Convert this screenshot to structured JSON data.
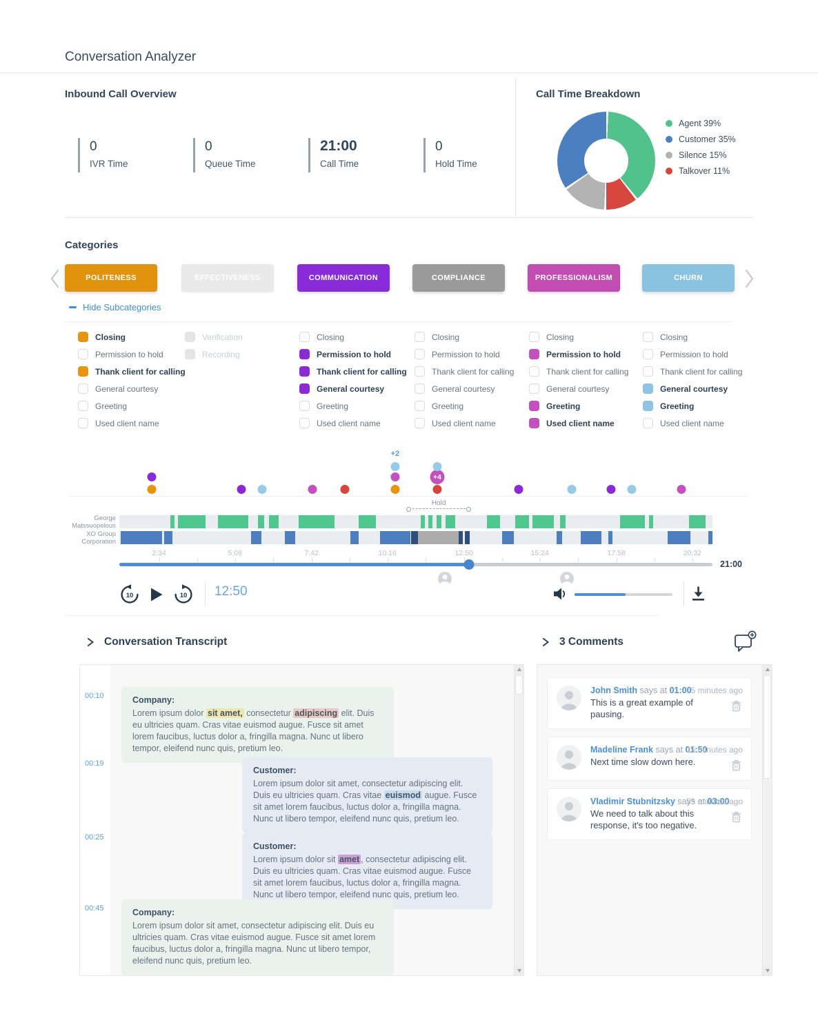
{
  "page": {
    "title": "Conversation Analyzer"
  },
  "overview": {
    "title": "Inbound Call Overview",
    "stats": [
      {
        "value": "0",
        "label": "IVR Time",
        "big": false
      },
      {
        "value": "0",
        "label": "Queue Time",
        "big": false
      },
      {
        "value": "21:00",
        "label": "Call Time",
        "big": true
      },
      {
        "value": "0",
        "label": "Hold Time",
        "big": false
      }
    ]
  },
  "chart_data": [
    {
      "type": "pie",
      "title": "Call Time Breakdown",
      "donut": true,
      "slices_clockwise_from_top": [
        {
          "label": "Agent",
          "value": 39,
          "color": "#52C28C"
        },
        {
          "label": "Talkover",
          "value": 11,
          "color": "#D6473D"
        },
        {
          "label": "Silence",
          "value": 15,
          "color": "#B3B3B3"
        },
        {
          "label": "Customer",
          "value": 35,
          "color": "#4C7FBF"
        }
      ],
      "legend": [
        {
          "label": "Agent",
          "pct": "39%",
          "color": "#52C28C"
        },
        {
          "label": "Customer",
          "pct": "35%",
          "color": "#4C7FBF"
        },
        {
          "label": "Silence",
          "pct": "15%",
          "color": "#B3B3B3"
        },
        {
          "label": "Talkover",
          "pct": "11%",
          "color": "#D6473D"
        }
      ]
    },
    {
      "type": "timeline",
      "speakers": [
        "George Matssuopolous",
        "XO Group Corporation"
      ],
      "palette": {
        "orange": "#E8940B",
        "purple": "#8B28D8",
        "magenta": "#C44FBE",
        "red": "#D6453C",
        "lightblue": "#99C9E8"
      },
      "track_colors": {
        "george": "#50C78E",
        "blue": "#4C7EC0",
        "gray": "#ACACAC",
        "dark": "#2F4E7D",
        "bg": "#E9EDF2"
      },
      "dots": [
        {
          "x": 5.5,
          "row": 0,
          "color": "orange"
        },
        {
          "x": 5.5,
          "row": 1,
          "color": "purple"
        },
        {
          "x": 20.6,
          "row": 0,
          "color": "purple"
        },
        {
          "x": 24.1,
          "row": 0,
          "color": "lightblue"
        },
        {
          "x": 32.6,
          "row": 0,
          "color": "magenta"
        },
        {
          "x": 38.0,
          "row": 0,
          "color": "red"
        },
        {
          "x": 46.5,
          "row": 0,
          "color": "orange"
        },
        {
          "x": 46.5,
          "row": 1,
          "color": "magenta"
        },
        {
          "x": 46.5,
          "row": 2,
          "color": "lightblue",
          "label": "+2"
        },
        {
          "x": 53.6,
          "row": 0,
          "color": "red"
        },
        {
          "x": 53.6,
          "row": 1,
          "color": "magenta",
          "badge": "+4"
        },
        {
          "x": 53.6,
          "row": 2,
          "color": "lightblue"
        },
        {
          "x": 67.3,
          "row": 0,
          "color": "purple"
        },
        {
          "x": 76.3,
          "row": 0,
          "color": "lightblue"
        },
        {
          "x": 82.9,
          "row": 0,
          "color": "purple"
        },
        {
          "x": 86.4,
          "row": 0,
          "color": "lightblue"
        },
        {
          "x": 94.8,
          "row": 0,
          "color": "magenta"
        }
      ],
      "hold": {
        "label": "Hold",
        "start": 48.8,
        "end": 58.9
      },
      "tracks": {
        "george": [
          {
            "s": 8.6,
            "w": 0.7
          },
          {
            "s": 9.9,
            "w": 4.6
          },
          {
            "s": 16.6,
            "w": 5.1
          },
          {
            "s": 23.4,
            "w": 1.0
          },
          {
            "s": 25.2,
            "w": 1.7
          },
          {
            "s": 30.2,
            "w": 6.1
          },
          {
            "s": 40.3,
            "w": 3.0
          },
          {
            "s": 50.8,
            "w": 0.7
          },
          {
            "s": 52.1,
            "w": 0.7
          },
          {
            "s": 53.5,
            "w": 0.8
          },
          {
            "s": 55.0,
            "w": 1.6
          },
          {
            "s": 62.0,
            "w": 2.2
          },
          {
            "s": 66.7,
            "w": 2.4
          },
          {
            "s": 69.7,
            "w": 3.5
          },
          {
            "s": 74.3,
            "w": 0.9
          },
          {
            "s": 84.4,
            "w": 4.2
          },
          {
            "s": 89.3,
            "w": 0.7
          },
          {
            "s": 96.1,
            "w": 2.7
          }
        ],
        "xo": [
          {
            "s": 0.2,
            "w": 7.0,
            "c": "blue"
          },
          {
            "s": 7.6,
            "w": 1.3,
            "c": "blue"
          },
          {
            "s": 22.2,
            "w": 1.7,
            "c": "blue"
          },
          {
            "s": 27.9,
            "w": 1.8,
            "c": "blue"
          },
          {
            "s": 39.0,
            "w": 1.3,
            "c": "blue"
          },
          {
            "s": 44.0,
            "w": 5.1,
            "c": "blue"
          },
          {
            "s": 49.2,
            "w": 1.2,
            "c": "dark"
          },
          {
            "s": 50.4,
            "w": 6.8,
            "c": "gray"
          },
          {
            "s": 57.2,
            "w": 0.7,
            "c": "dark"
          },
          {
            "s": 58.3,
            "w": 0.8,
            "c": "dark"
          },
          {
            "s": 64.5,
            "w": 2.0,
            "c": "blue"
          },
          {
            "s": 73.7,
            "w": 0.9,
            "c": "blue"
          },
          {
            "s": 77.8,
            "w": 3.5,
            "c": "blue"
          },
          {
            "s": 82.4,
            "w": 0.7,
            "c": "blue"
          },
          {
            "s": 92.4,
            "w": 3.9,
            "c": "blue"
          },
          {
            "s": 99.3,
            "w": 0.7,
            "c": "blue"
          }
        ]
      },
      "axis": [
        {
          "t": "2:34",
          "x": 6.7
        },
        {
          "t": "5:08",
          "x": 19.5
        },
        {
          "t": "7:42",
          "x": 32.4
        },
        {
          "t": "10:16",
          "x": 45.2
        },
        {
          "t": "12:50",
          "x": 58.1
        },
        {
          "t": "15:24",
          "x": 70.9
        },
        {
          "t": "17:58",
          "x": 83.8
        },
        {
          "t": "20:32",
          "x": 96.6
        }
      ],
      "end_label": "21:00",
      "progress_pct": 59.0,
      "comment_marker_pcts": [
        54.9,
        75.5
      ]
    }
  ],
  "categories": {
    "heading": "Categories",
    "hide_link": "Hide Subcategories",
    "buttons": [
      {
        "label": "POLITENESS",
        "color": "#E2930D",
        "state": "active"
      },
      {
        "label": "EFFECTIVENESS",
        "color": "#E9E9E9",
        "state": "disabled"
      },
      {
        "label": "COMMUNICATION",
        "color": "#8A2BD9",
        "state": "active"
      },
      {
        "label": "COMPLIANCE",
        "color": "#9A9A9A",
        "state": "active"
      },
      {
        "label": "PROFESSIONALISM",
        "color": "#C24CB2",
        "state": "active"
      },
      {
        "label": "CHURN",
        "color": "#89C3E1",
        "state": "active"
      }
    ],
    "columns": [
      {
        "category": "POLITENESS",
        "accent": "#E8960F",
        "items": [
          {
            "label": "Closing",
            "checked": true
          },
          {
            "label": "Permission to hold",
            "checked": false
          },
          {
            "label": "Thank client for calling",
            "checked": true
          },
          {
            "label": "General courtesy",
            "checked": false
          },
          {
            "label": "Greeting",
            "checked": false
          },
          {
            "label": "Used client name",
            "checked": false
          }
        ]
      },
      {
        "category": "EFFECTIVENESS",
        "accent": "#E4E4E4",
        "items": [
          {
            "label": "Verification",
            "checked": false,
            "disabled": true
          },
          {
            "label": "Recording",
            "checked": false,
            "disabled": true
          }
        ]
      },
      {
        "category": "COMMUNICATION",
        "accent": "#8B2BD3",
        "items": [
          {
            "label": "Closing",
            "checked": false
          },
          {
            "label": "Permission to hold",
            "checked": true
          },
          {
            "label": "Thank client for calling",
            "checked": true
          },
          {
            "label": "General courtesy",
            "checked": true
          },
          {
            "label": "Greeting",
            "checked": false
          },
          {
            "label": "Used client name",
            "checked": false
          }
        ]
      },
      {
        "category": "COMPLIANCE",
        "accent": "#9A9A9A",
        "items": [
          {
            "label": "Closing",
            "checked": false
          },
          {
            "label": "Permission to hold",
            "checked": false
          },
          {
            "label": "Thank client for calling",
            "checked": false
          },
          {
            "label": "General courtesy",
            "checked": false
          },
          {
            "label": "Greeting",
            "checked": false
          },
          {
            "label": "Used client name",
            "checked": false
          }
        ]
      },
      {
        "category": "PROFESSIONALISM",
        "accent": "#C44FBE",
        "items": [
          {
            "label": "Closing",
            "checked": false
          },
          {
            "label": "Permission to hold",
            "checked": true
          },
          {
            "label": "Thank client for calling",
            "checked": false
          },
          {
            "label": "General courtesy",
            "checked": false
          },
          {
            "label": "Greeting",
            "checked": true
          },
          {
            "label": "Used client name",
            "checked": true
          }
        ]
      },
      {
        "category": "CHURN",
        "accent": "#8FC3E4",
        "items": [
          {
            "label": "Closing",
            "checked": false
          },
          {
            "label": "Permission to hold",
            "checked": false
          },
          {
            "label": "Thank client for calling",
            "checked": false
          },
          {
            "label": "General courtesy",
            "checked": true
          },
          {
            "label": "Greeting",
            "checked": true
          },
          {
            "label": "Used client name",
            "checked": false
          }
        ]
      }
    ]
  },
  "player": {
    "current_time": "12:50",
    "volume_pct": 52
  },
  "transcript": {
    "heading": "Conversation Transcript",
    "highlight_colors": {
      "yellow": "#F0E4AF",
      "red": "#EBC8C4",
      "blue": "#C5DDF0",
      "purple": "#CDA0DA"
    },
    "messages": [
      {
        "time": "00:10",
        "speaker": "Company:",
        "side": "left",
        "parts": [
          {
            "t": "Lorem ipsum dolor "
          },
          {
            "t": "sit amet,",
            "hl": "yellow"
          },
          {
            "t": " consectetur "
          },
          {
            "t": "adipiscing",
            "hl": "red"
          },
          {
            "t": " elit. Duis eu ultricies quam. Cras vitae euismod augue. Fusce sit amet lorem faucibus, luctus dolor a, fringilla magna. Nunc ut libero tempor, eleifend nunc quis, pretium leo."
          }
        ]
      },
      {
        "time": "00:19",
        "speaker": "Customer:",
        "side": "right",
        "parts": [
          {
            "t": "Lorem ipsum dolor sit amet, consectetur adipiscing elit. Duis eu ultricies quam. Cras vitae "
          },
          {
            "t": "euismod",
            "hl": "blue"
          },
          {
            "t": " augue. Fusce sit amet lorem faucibus, luctus dolor a, fringilla magna. Nunc ut libero tempor, eleifend nunc quis, pretium leo."
          }
        ]
      },
      {
        "time": "00:25",
        "speaker": "Customer:",
        "side": "right",
        "parts": [
          {
            "t": "Lorem ipsum dolor sit "
          },
          {
            "t": "amet",
            "hl": "purple"
          },
          {
            "t": ", consectetur adipiscing elit. Duis eu ultricies quam. Cras vitae euismod augue. Fusce sit amet lorem faucibus, luctus dolor a, fringilla magna. Nunc ut libero tempor, eleifend nunc quis, pretium leo."
          }
        ]
      },
      {
        "time": "00:45",
        "speaker": "Company:",
        "side": "left",
        "parts": [
          {
            "t": "Lorem ipsum dolor sit amet, consectetur adipiscing elit. Duis eu ultricies quam. Cras vitae euismod augue. Fusce sit amet lorem faucibus, luctus dolor a, fringilla magna. Nunc ut libero tempor, eleifend nunc quis, pretium leo."
          }
        ]
      }
    ]
  },
  "comments": {
    "heading": "3 Comments",
    "items": [
      {
        "name": "John Smith",
        "says": "says at",
        "time": "01:00",
        "ago": "5 minutes ago",
        "text": "This is a great example of pausing."
      },
      {
        "name": "Madeline Frank",
        "says": "says at",
        "time": "01:50",
        "ago": "15 minutes ago",
        "text": "Next time slow down here."
      },
      {
        "name": "Vladimir Stubnitzsky",
        "says": "says at",
        "time": "03:00",
        "ago": "55 minutes ago",
        "text": "We need to talk about this response, it's too negative."
      }
    ]
  }
}
